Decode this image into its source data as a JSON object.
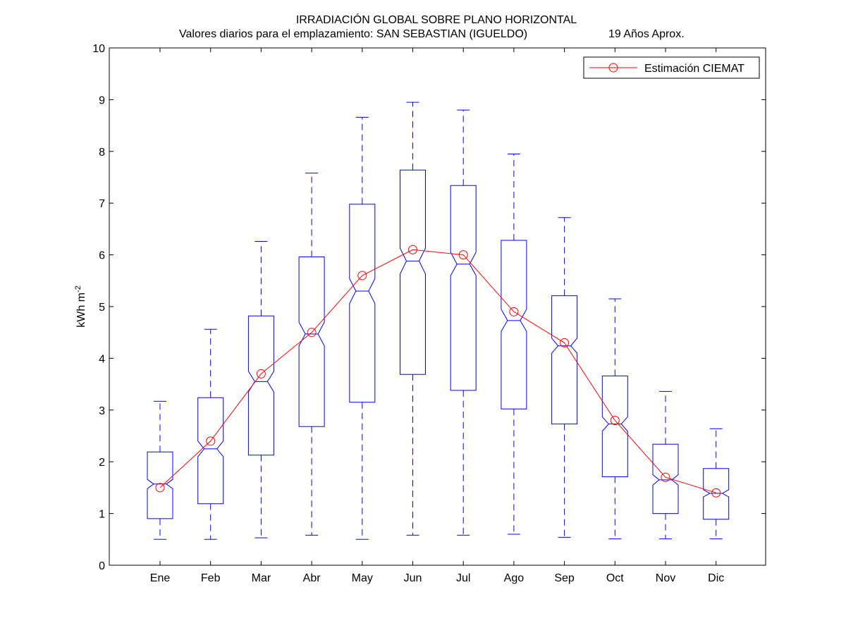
{
  "chart_data": {
    "type": "boxplot",
    "title": "IRRADIACIÓN GLOBAL SOBRE PLANO HORIZONTAL",
    "subtitle_left": "Valores diarios para el emplazamiento:  SAN SEBASTIAN (IGUELDO)",
    "subtitle_right": "19 Años Aprox.",
    "ylabel_main": "kWh m",
    "ylabel_sup": "-2",
    "ylim": [
      0,
      10
    ],
    "yticks": [
      "0",
      "1",
      "2",
      "3",
      "4",
      "5",
      "6",
      "7",
      "8",
      "9",
      "10"
    ],
    "categories": [
      "Ene",
      "Feb",
      "Mar",
      "Abr",
      "May",
      "Jun",
      "Jul",
      "Ago",
      "Sep",
      "Oct",
      "Nov",
      "Dic"
    ],
    "boxes": [
      {
        "min": 0.5,
        "q1": 0.9,
        "median": 1.57,
        "q3": 2.19,
        "max": 3.17,
        "notch_low": 1.48,
        "notch_high": 1.66
      },
      {
        "min": 0.5,
        "q1": 1.19,
        "median": 2.25,
        "q3": 3.24,
        "max": 4.56,
        "notch_low": 2.1,
        "notch_high": 2.4
      },
      {
        "min": 0.53,
        "q1": 2.13,
        "median": 3.55,
        "q3": 4.82,
        "max": 6.26,
        "notch_low": 3.35,
        "notch_high": 3.75
      },
      {
        "min": 0.58,
        "q1": 2.68,
        "median": 4.47,
        "q3": 5.96,
        "max": 7.58,
        "notch_low": 4.24,
        "notch_high": 4.7
      },
      {
        "min": 0.5,
        "q1": 3.15,
        "median": 5.3,
        "q3": 6.98,
        "max": 8.66,
        "notch_low": 5.06,
        "notch_high": 5.54
      },
      {
        "min": 0.58,
        "q1": 3.69,
        "median": 5.88,
        "q3": 7.64,
        "max": 8.95,
        "notch_low": 5.63,
        "notch_high": 6.13
      },
      {
        "min": 0.58,
        "q1": 3.38,
        "median": 5.82,
        "q3": 7.34,
        "max": 8.8,
        "notch_low": 5.6,
        "notch_high": 6.05
      },
      {
        "min": 0.6,
        "q1": 3.02,
        "median": 4.73,
        "q3": 6.28,
        "max": 7.95,
        "notch_low": 4.52,
        "notch_high": 4.95
      },
      {
        "min": 0.54,
        "q1": 2.73,
        "median": 4.24,
        "q3": 5.21,
        "max": 6.72,
        "notch_low": 4.1,
        "notch_high": 4.39
      },
      {
        "min": 0.51,
        "q1": 1.71,
        "median": 2.73,
        "q3": 3.66,
        "max": 5.15,
        "notch_low": 2.59,
        "notch_high": 2.87
      },
      {
        "min": 0.51,
        "q1": 1.0,
        "median": 1.65,
        "q3": 2.34,
        "max": 3.36,
        "notch_low": 1.55,
        "notch_high": 1.75
      },
      {
        "min": 0.51,
        "q1": 0.89,
        "median": 1.39,
        "q3": 1.87,
        "max": 2.64,
        "notch_low": 1.32,
        "notch_high": 1.46
      }
    ],
    "series": [
      {
        "name": "Estimación CIEMAT",
        "values": [
          1.5,
          2.4,
          3.7,
          4.5,
          5.6,
          6.1,
          6.0,
          4.9,
          4.3,
          2.8,
          1.7,
          1.4
        ]
      }
    ],
    "legend_position": "top-right",
    "colors": {
      "box": "#0000ff",
      "series": "#ff0000",
      "axes": "#000000"
    }
  }
}
